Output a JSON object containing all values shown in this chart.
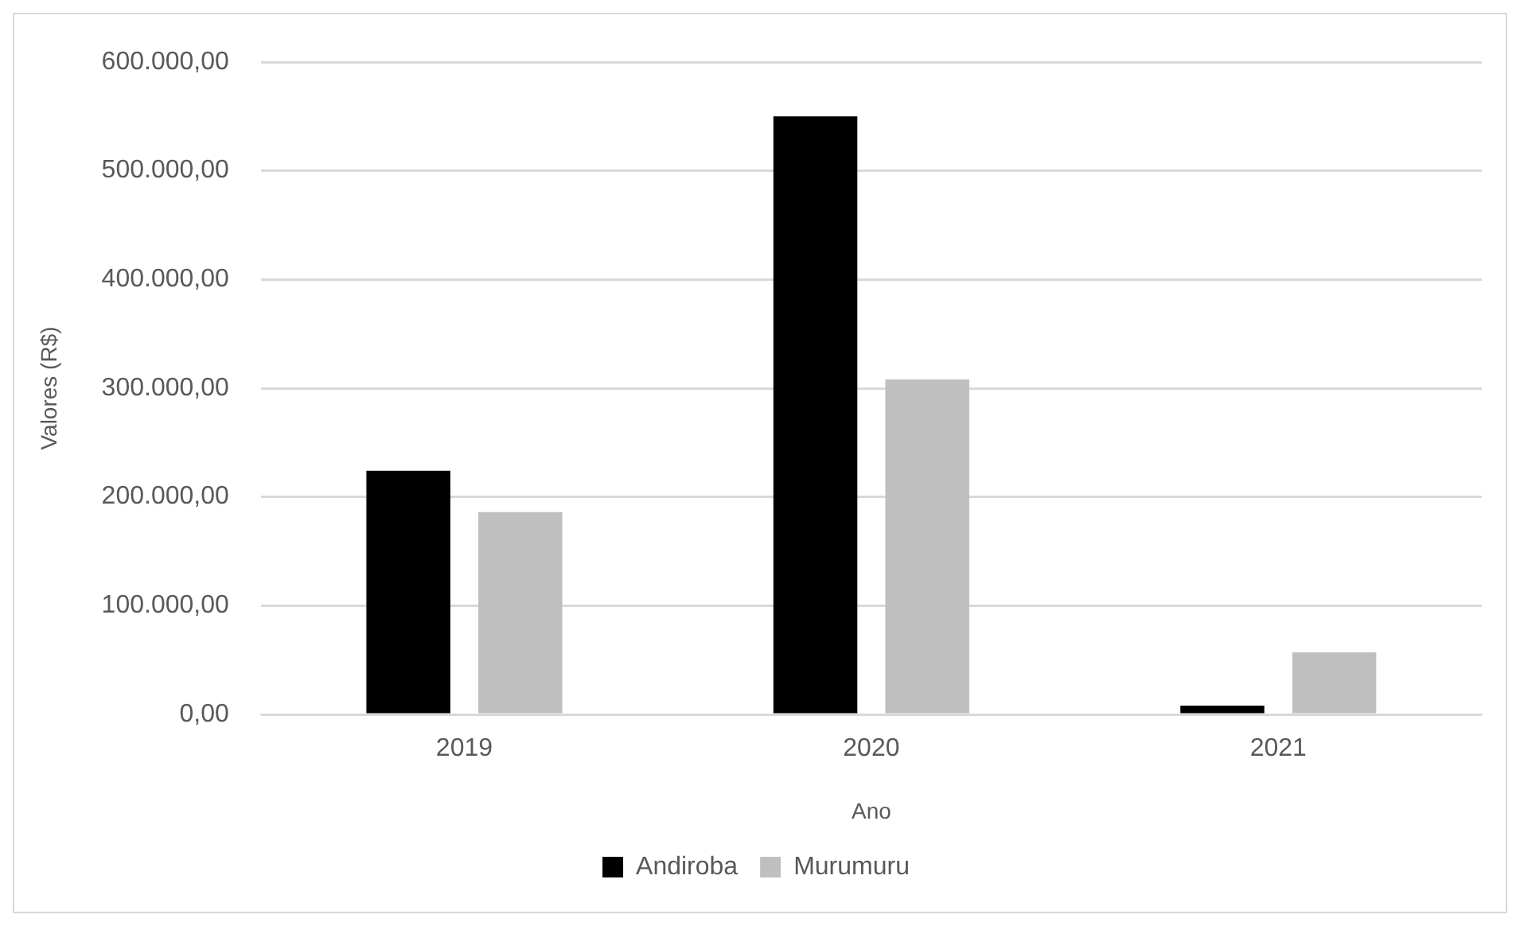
{
  "chart_data": {
    "type": "bar",
    "xlabel": "Ano",
    "ylabel": "Valores (R$)",
    "categories": [
      "2019",
      "2020",
      "2021"
    ],
    "series": [
      {
        "name": "Andiroba",
        "color": "#000000",
        "values": [
          224000,
          550000,
          8000
        ]
      },
      {
        "name": "Murumuru",
        "color": "#bfbfbf",
        "values": [
          186000,
          308000,
          57000
        ]
      }
    ],
    "ylim": [
      0,
      600000
    ],
    "yticks": [
      {
        "value": 0,
        "label": "0,00"
      },
      {
        "value": 100000,
        "label": "100.000,00"
      },
      {
        "value": 200000,
        "label": "200.000,00"
      },
      {
        "value": 300000,
        "label": "300.000,00"
      },
      {
        "value": 400000,
        "label": "400.000,00"
      },
      {
        "value": 500000,
        "label": "500.000,00"
      },
      {
        "value": 600000,
        "label": "600.000,00"
      }
    ],
    "grid": "y",
    "legend": "bottom"
  }
}
